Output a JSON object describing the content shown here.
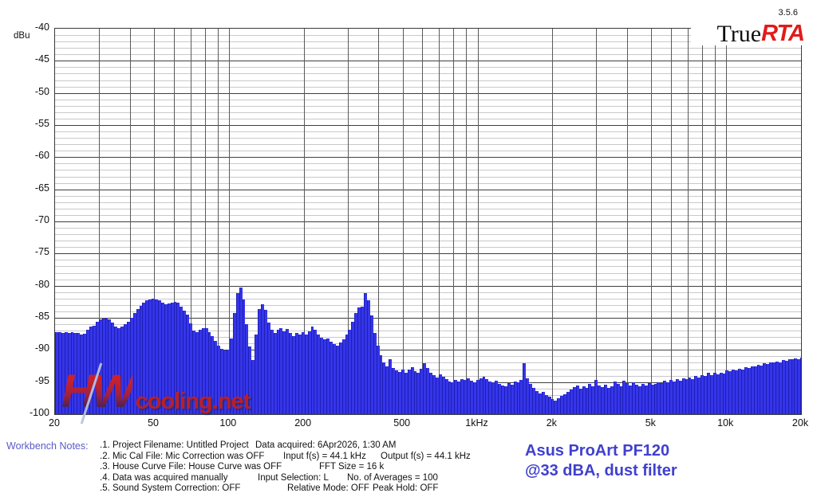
{
  "version": "3.5.6",
  "logo": {
    "word_true": "True",
    "word_rta": "RTA",
    "rta_color": "#e11b1b"
  },
  "axis": {
    "unit_label": "dBu",
    "y_ticks": [
      "-40",
      "-45",
      "-50",
      "-55",
      "-60",
      "-65",
      "-70",
      "-75",
      "-80",
      "-85",
      "-90",
      "-95",
      "-100"
    ],
    "x_ticks": [
      {
        "label": "20",
        "f": 20
      },
      {
        "label": "50",
        "f": 50
      },
      {
        "label": "100",
        "f": 100
      },
      {
        "label": "200",
        "f": 200
      },
      {
        "label": "500",
        "f": 500
      },
      {
        "label": "1kHz",
        "f": 1000
      },
      {
        "label": "2k",
        "f": 2000
      },
      {
        "label": "5k",
        "f": 5000
      },
      {
        "label": "10k",
        "f": 10000
      },
      {
        "label": "20k",
        "f": 20000
      }
    ]
  },
  "chart_data": {
    "type": "bar",
    "title": "RTA noise spectrum",
    "x_unit": "Hz",
    "y_unit": "dBu",
    "x_scale": "log",
    "xlim": [
      20,
      20000
    ],
    "ylim": [
      -100,
      -40
    ],
    "grid": "on",
    "points_per_octave": 24,
    "start_freq_hz": 20,
    "values_dbu": [
      -87.2,
      -87.2,
      -87.3,
      -87.2,
      -87.3,
      -87.2,
      -87.3,
      -87.4,
      -87.6,
      -87.5,
      -86.8,
      -86.4,
      -86.2,
      -85.6,
      -85.2,
      -85.1,
      -85.0,
      -85.3,
      -85.8,
      -86.3,
      -86.6,
      -86.4,
      -86.0,
      -85.6,
      -85.0,
      -84.3,
      -83.6,
      -83.1,
      -82.6,
      -82.3,
      -82.1,
      -82.0,
      -82.1,
      -82.3,
      -82.6,
      -82.9,
      -82.8,
      -82.6,
      -82.5,
      -82.7,
      -83.3,
      -83.9,
      -84.5,
      -85.9,
      -87.0,
      -87.2,
      -86.9,
      -86.6,
      -86.6,
      -87.2,
      -87.9,
      -88.6,
      -89.3,
      -89.8,
      -90.1,
      -89.9,
      -88.2,
      -84.2,
      -81.1,
      -80.3,
      -82.2,
      -86.0,
      -89.5,
      -91.6,
      -87.6,
      -83.6,
      -82.9,
      -83.7,
      -85.7,
      -86.9,
      -87.4,
      -86.9,
      -86.6,
      -87.1,
      -86.7,
      -87.4,
      -87.8,
      -87.3,
      -87.6,
      -87.2,
      -87.6,
      -87.1,
      -86.4,
      -86.8,
      -87.6,
      -88.1,
      -88.4,
      -88.2,
      -88.7,
      -89.1,
      -89.3,
      -88.9,
      -88.4,
      -87.6,
      -86.8,
      -85.6,
      -84.3,
      -83.4,
      -83.3,
      -81.2,
      -82.3,
      -84.6,
      -87.3,
      -89.3,
      -90.8,
      -92.0,
      -92.6,
      -91.4,
      -92.8,
      -93.2,
      -93.4,
      -93.1,
      -93.5,
      -93.0,
      -92.7,
      -93.3,
      -93.6,
      -92.9,
      -92.1,
      -92.8,
      -93.5,
      -93.9,
      -94.3,
      -93.8,
      -94.2,
      -94.6,
      -94.9,
      -95.1,
      -94.7,
      -94.9,
      -94.5,
      -94.7,
      -94.4,
      -94.8,
      -95.0,
      -94.7,
      -94.4,
      -94.2,
      -94.6,
      -94.9,
      -95.1,
      -94.8,
      -95.3,
      -95.5,
      -95.6,
      -95.2,
      -95.4,
      -94.9,
      -95.1,
      -94.7,
      -92.1,
      -94.4,
      -95.3,
      -95.9,
      -96.4,
      -96.8,
      -96.5,
      -97.0,
      -97.3,
      -97.6,
      -97.9,
      -97.5,
      -97.2,
      -96.9,
      -96.5,
      -96.1,
      -95.8,
      -95.5,
      -96.0,
      -95.6,
      -95.9,
      -95.3,
      -95.6,
      -94.7,
      -95.5,
      -95.8,
      -95.4,
      -95.9,
      -95.6,
      -94.9,
      -95.3,
      -95.6,
      -94.8,
      -95.2,
      -95.5,
      -95.1,
      -95.4,
      -95.7,
      -95.3,
      -95.5,
      -95.2,
      -95.4,
      -95.3,
      -95.0,
      -95.2,
      -94.8,
      -95.0,
      -94.7,
      -94.9,
      -94.5,
      -94.8,
      -94.4,
      -94.6,
      -94.3,
      -94.5,
      -94.1,
      -94.3,
      -93.9,
      -94.1,
      -93.5,
      -93.9,
      -93.6,
      -93.8,
      -93.5,
      -93.7,
      -93.2,
      -93.3,
      -93.1,
      -93.2,
      -92.9,
      -93.0,
      -92.7,
      -92.8,
      -92.5,
      -92.6,
      -92.3,
      -92.4,
      -92.1,
      -92.2,
      -91.9,
      -92.0,
      -91.8,
      -91.9,
      -91.6,
      -91.7,
      -91.5,
      -91.5,
      -91.3,
      -91.4,
      -91.2
    ]
  },
  "watermark": {
    "hw": "HW",
    "net": "cooling.net"
  },
  "notes": {
    "heading": "Workbench Notes:",
    "lines": [
      {
        "segments": [
          {
            "text": ".1. Project Filename: Untitled Project",
            "x": 125
          },
          {
            "text": "Data acquired: 6Apr2026, 1:30 AM",
            "x": 320
          }
        ]
      },
      {
        "segments": [
          {
            "text": ".2. Mic Cal File: Mic Correction was OFF",
            "x": 125
          },
          {
            "text": "Input f(s) = 44.1 kHz",
            "x": 355
          },
          {
            "text": "Output f(s) = 44.1 kHz",
            "x": 477
          }
        ]
      },
      {
        "segments": [
          {
            "text": ".3. House Curve File: House Curve was OFF",
            "x": 125
          },
          {
            "text": "FFT Size = 16 k",
            "x": 400
          }
        ]
      },
      {
        "segments": [
          {
            "text": ".4. Data was acquired manually",
            "x": 125
          },
          {
            "text": "Input Selection: L",
            "x": 323
          },
          {
            "text": "No. of Averages = 100",
            "x": 435
          }
        ]
      },
      {
        "segments": [
          {
            "text": ".5. Sound System Correction: OFF",
            "x": 125
          },
          {
            "text": "Relative Mode:  OFF",
            "x": 360
          },
          {
            "text": "Peak Hold: OFF",
            "x": 467
          }
        ]
      }
    ]
  },
  "annotation": {
    "line1": "Asus ProArt PF120",
    "line2": "@33 dBA, dust filter",
    "color": "#4040cf"
  },
  "colors": {
    "bar_fill": "#3535ea",
    "bar_edge": "#1e1eb4",
    "grid_minor": "#c9c9c9",
    "grid_major": "#3f3f3f",
    "grid_vertical": "#5a5a5a",
    "notes_heading": "#5a5ac8",
    "logo_red": "#e11b1b",
    "watermark_red": "#bf1f1f"
  }
}
